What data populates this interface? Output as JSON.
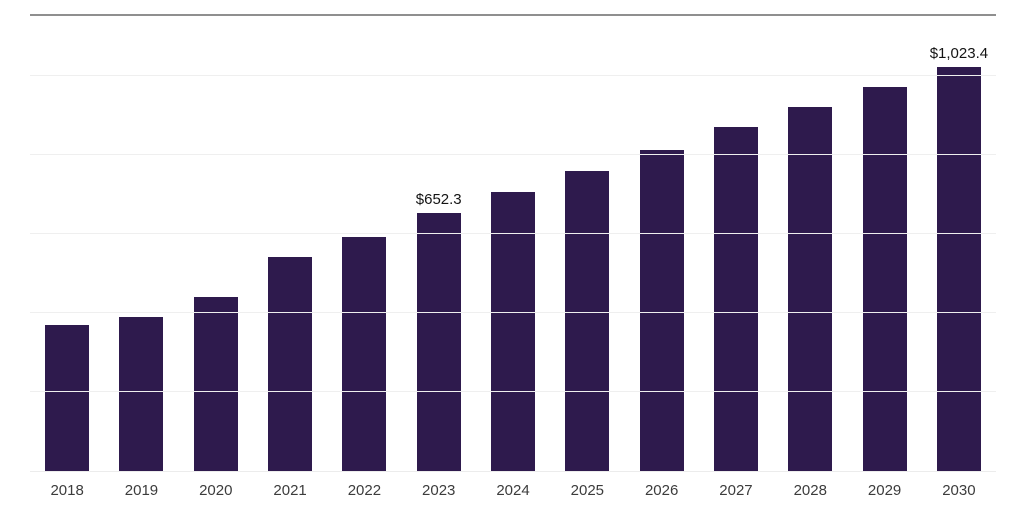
{
  "chart_data": {
    "type": "bar",
    "title": "",
    "xlabel": "",
    "ylabel": "",
    "categories": [
      "2018",
      "2019",
      "2020",
      "2021",
      "2022",
      "2023",
      "2024",
      "2025",
      "2026",
      "2027",
      "2028",
      "2029",
      "2030"
    ],
    "values": [
      371,
      389,
      442,
      543,
      593,
      652.3,
      707,
      760,
      813,
      871,
      922,
      972,
      1023.4
    ],
    "data_labels": [
      {
        "category": "2023",
        "text": "$652.3"
      },
      {
        "category": "2030",
        "text": "$1,023.4"
      }
    ],
    "ylim": [
      0,
      1160
    ],
    "gridline_values": [
      200,
      400,
      600,
      800,
      1000
    ],
    "grid": true,
    "legend": "none",
    "colors": {
      "bar": "#2e1a4d",
      "gridline": "#efefef",
      "top_border": "#8f8f8f",
      "axis_tick_label": "#3c3c3c",
      "data_label": "#141414",
      "background": "#ffffff"
    }
  }
}
